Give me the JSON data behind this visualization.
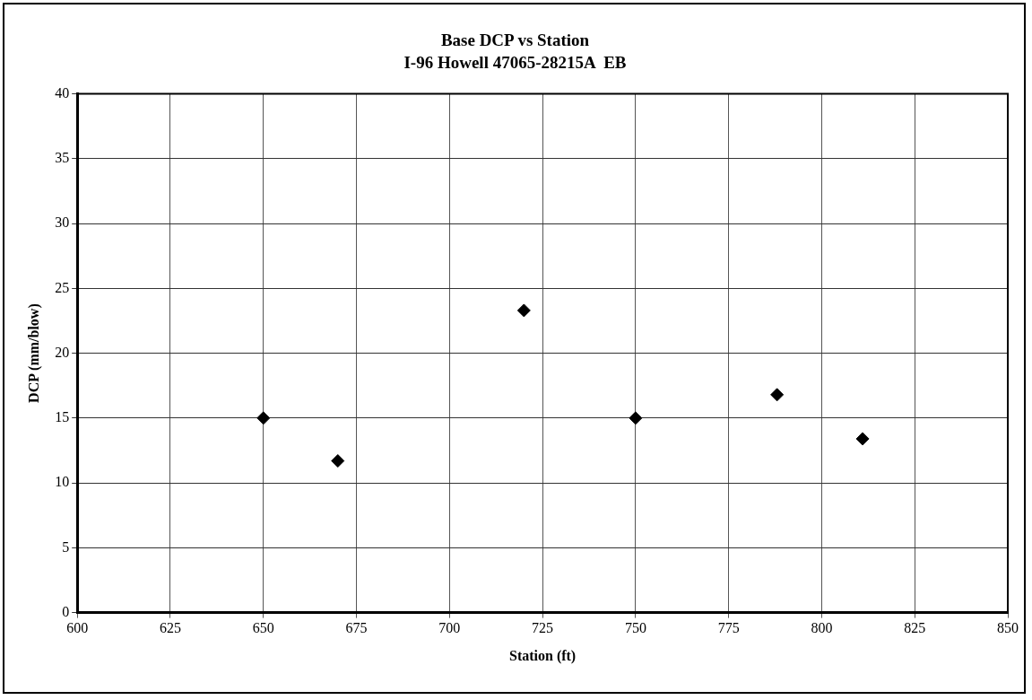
{
  "chart_data": {
    "type": "scatter",
    "title": "Base DCP vs Station",
    "subtitle": "I-96 Howell 47065-28215A  EB",
    "xlabel": "Station (ft)",
    "ylabel": "DCP (mm/blow)",
    "x": [
      650,
      670,
      720,
      750,
      788,
      811
    ],
    "series": [
      {
        "color": "#000000",
        "values": [
          15.0,
          11.7,
          23.3,
          15.0,
          16.8,
          13.4
        ]
      }
    ],
    "xlim": [
      600,
      850
    ],
    "xticks": [
      600,
      625,
      650,
      675,
      700,
      725,
      750,
      775,
      800,
      825,
      850
    ],
    "ylim": [
      0,
      40
    ],
    "yticks": [
      0,
      5,
      10,
      15,
      20,
      25,
      30,
      35,
      40
    ],
    "grid": true,
    "marker": "diamond",
    "legend": false
  }
}
